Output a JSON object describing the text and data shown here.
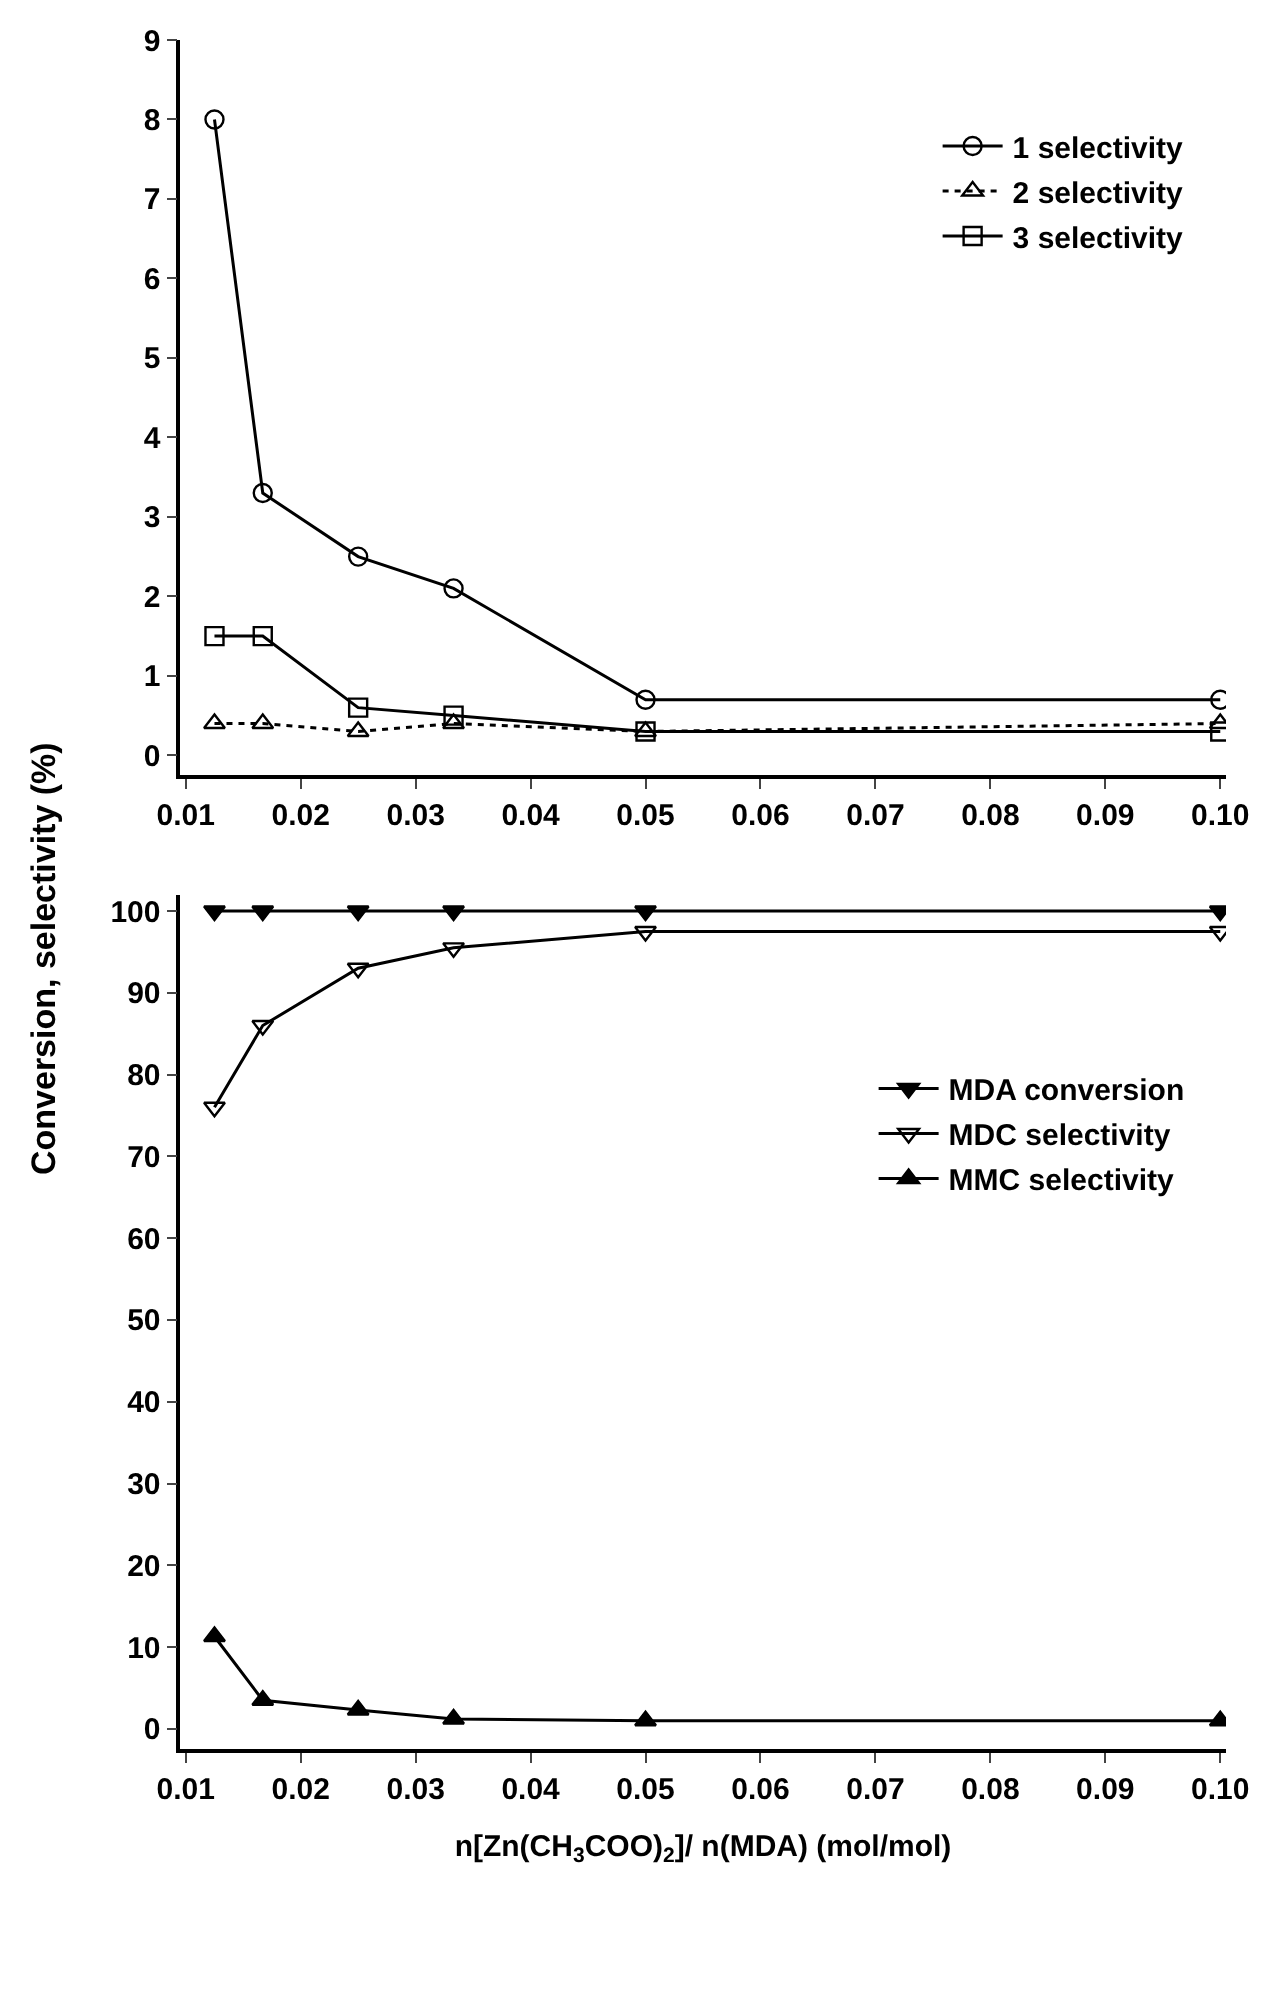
{
  "chart_data": [
    {
      "type": "line",
      "ylabel": "Conversion, selectivity (%)",
      "x": [
        0.0125,
        0.0167,
        0.025,
        0.0333,
        0.05,
        0.1
      ],
      "xlim": [
        0.0095,
        0.1005
      ],
      "xticks": [
        {
          "value": 0.01,
          "label": "0.01"
        },
        {
          "value": 0.02,
          "label": "0.02"
        },
        {
          "value": 0.03,
          "label": "0.03"
        },
        {
          "value": 0.04,
          "label": "0.04"
        },
        {
          "value": 0.05,
          "label": "0.05"
        },
        {
          "value": 0.06,
          "label": "0.06"
        },
        {
          "value": 0.07,
          "label": "0.07"
        },
        {
          "value": 0.08,
          "label": "0.08"
        },
        {
          "value": 0.09,
          "label": "0.09"
        },
        {
          "value": 0.1,
          "label": "0.10"
        }
      ],
      "ylim": [
        -0.25,
        9
      ],
      "yticks": [
        0,
        1,
        2,
        3,
        4,
        5,
        6,
        7,
        8,
        9
      ],
      "legend": "top right",
      "series": [
        {
          "name": "1 selectivity",
          "color": "#000000",
          "marker": "circle",
          "line_style": "solid",
          "values": [
            8,
            3.3,
            2.5,
            2.1,
            0.7,
            0.7
          ]
        },
        {
          "name": "2 selectivity",
          "color": "#000000",
          "marker": "triangle",
          "line_style": "dotted",
          "values": [
            0.4,
            0.4,
            0.3,
            0.4,
            0.3,
            0.4
          ]
        },
        {
          "name": "3 selectivity",
          "color": "#000000",
          "marker": "square",
          "line_style": "solid",
          "values": [
            1.5,
            1.5,
            0.6,
            0.5,
            0.3,
            0.3
          ]
        }
      ]
    },
    {
      "type": "line",
      "xlabel": "n[Zn(CH$_{3}$COO)$_{2}$]/ n(MDA) (mol/mol)",
      "x": [
        0.0125,
        0.0167,
        0.025,
        0.0333,
        0.05,
        0.1
      ],
      "xlim": [
        0.0095,
        0.1005
      ],
      "xticks": [
        {
          "value": 0.01,
          "label": "0.01"
        },
        {
          "value": 0.02,
          "label": "0.02"
        },
        {
          "value": 0.03,
          "label": "0.03"
        },
        {
          "value": 0.04,
          "label": "0.04"
        },
        {
          "value": 0.05,
          "label": "0.05"
        },
        {
          "value": 0.06,
          "label": "0.06"
        },
        {
          "value": 0.07,
          "label": "0.07"
        },
        {
          "value": 0.08,
          "label": "0.08"
        },
        {
          "value": 0.09,
          "label": "0.09"
        },
        {
          "value": 0.1,
          "label": "0.10"
        }
      ],
      "ylim": [
        -2.5,
        102
      ],
      "yticks": [
        0,
        10,
        20,
        30,
        40,
        50,
        60,
        70,
        80,
        90,
        100
      ],
      "legend": "right",
      "series": [
        {
          "name": "MDA conversion",
          "color": "#000000",
          "marker": "triangle-down-filled",
          "line_style": "solid",
          "values": [
            100,
            100,
            100,
            100,
            100,
            100
          ]
        },
        {
          "name": "MDC selectivity",
          "color": "#000000",
          "marker": "triangle-down",
          "line_style": "solid",
          "values": [
            76,
            86,
            93,
            95.5,
            97.5,
            97.5
          ]
        },
        {
          "name": "MMC selectivity",
          "color": "#000000",
          "marker": "triangle-filled",
          "line_style": "solid",
          "values": [
            11.3,
            3.5,
            2.3,
            1.2,
            1,
            1
          ]
        }
      ]
    }
  ]
}
